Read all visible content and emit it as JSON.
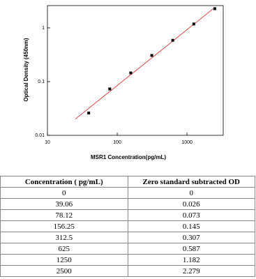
{
  "chart_data": {
    "type": "scatter",
    "xlabel": "MSR1  Concentration(pg/mL)",
    "ylabel": "Optical Density (450nm)",
    "x": [
      39.06,
      78.12,
      156.25,
      312.5,
      625,
      1250,
      2500
    ],
    "values": [
      0.026,
      0.073,
      0.145,
      0.307,
      0.587,
      1.182,
      2.279
    ],
    "color": "#000000",
    "fit": {
      "x": [
        25,
        2500
      ],
      "y": [
        0.02,
        2.4
      ],
      "color": "#e03030"
    },
    "xscale": "log",
    "yscale": "log",
    "xlim": [
      10,
      3300
    ],
    "xticks": [
      10,
      100,
      1000
    ],
    "ylim": [
      0.01,
      2.6
    ],
    "yticks": [
      0.01,
      0.1,
      1
    ]
  },
  "table": {
    "header": [
      "Concentration ( pg/mL)",
      "Zero standard subtracted OD"
    ],
    "rows": [
      [
        "0",
        "0"
      ],
      [
        "39.06",
        "0.026"
      ],
      [
        "78.12",
        "0.073"
      ],
      [
        "156.25",
        "0.145"
      ],
      [
        "312.5",
        "0.307"
      ],
      [
        "625",
        "0.587"
      ],
      [
        "1250",
        "1.182"
      ],
      [
        "2500",
        "2.279"
      ]
    ]
  }
}
